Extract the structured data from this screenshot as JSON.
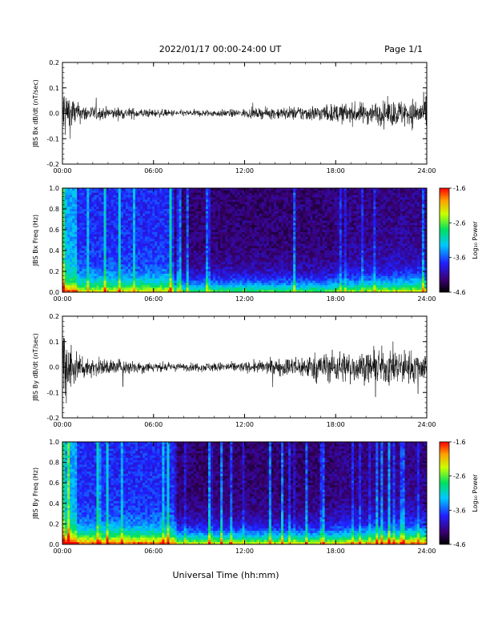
{
  "header": {
    "title": "2022/01/17  00:00-24:00 UT",
    "page": "Page 1/1"
  },
  "footer": {
    "xlabel": "Universal Time (hh:mm)"
  },
  "chart_data": [
    {
      "type": "line",
      "ylabel": "JBS Bx dB/dt (nT/sec)",
      "xlim": [
        0,
        24
      ],
      "ylim": [
        -0.2,
        0.2
      ],
      "yticks": [
        "0.2",
        "0.1",
        "0.0",
        "-0.1",
        "-0.2"
      ],
      "xticks": [
        "00:00",
        "06:00",
        "12:00",
        "18:00",
        "24:00"
      ],
      "series": [
        {
          "amplitude_envelope": {
            "x_hours": [
              0,
              0.5,
              1,
              2,
              3,
              4,
              5,
              6,
              7,
              8,
              9,
              10,
              11,
              12,
              13,
              14,
              15,
              16,
              17,
              18,
              19,
              20,
              21,
              22,
              23,
              24
            ],
            "amplitude": [
              0.11,
              0.07,
              0.035,
              0.025,
              0.02,
              0.02,
              0.017,
              0.014,
              0.012,
              0.011,
              0.012,
              0.012,
              0.013,
              0.015,
              0.017,
              0.02,
              0.023,
              0.026,
              0.028,
              0.032,
              0.035,
              0.037,
              0.04,
              0.045,
              0.05,
              0.05
            ]
          }
        }
      ]
    },
    {
      "type": "heatmap",
      "ylabel": "JBS Bx Freq (Hz)",
      "xlim": [
        0,
        24
      ],
      "ylim": [
        0.0,
        1.0
      ],
      "yticks": [
        "1.0",
        "0.8",
        "0.6",
        "0.4",
        "0.2",
        "0.0"
      ],
      "xticks": [
        "00:00",
        "06:00",
        "12:00",
        "18:00",
        "24:00"
      ],
      "colorbar": {
        "label": "Log₁₀ Power",
        "min": -4.6,
        "max": -1.6,
        "ticks": [
          "-1.6",
          "-2.6",
          "-3.6",
          "-4.6"
        ]
      }
    },
    {
      "type": "line",
      "ylabel": "JBS By dB/dt (nT/sec)",
      "xlim": [
        0,
        24
      ],
      "ylim": [
        -0.2,
        0.2
      ],
      "yticks": [
        "0.2",
        "0.1",
        "0.0",
        "-0.1",
        "-0.2"
      ],
      "xticks": [
        "00:00",
        "06:00",
        "12:00",
        "18:00",
        "24:00"
      ],
      "series": [
        {
          "amplitude_envelope": {
            "x_hours": [
              0,
              0.5,
              1,
              2,
              3,
              4,
              5,
              6,
              7,
              8,
              9,
              10,
              11,
              12,
              13,
              14,
              15,
              16,
              17,
              18,
              19,
              20,
              21,
              22,
              23,
              24
            ],
            "amplitude": [
              0.14,
              0.1,
              0.05,
              0.03,
              0.028,
              0.027,
              0.022,
              0.017,
              0.014,
              0.013,
              0.015,
              0.016,
              0.017,
              0.017,
              0.022,
              0.027,
              0.034,
              0.04,
              0.05,
              0.055,
              0.055,
              0.05,
              0.06,
              0.065,
              0.055,
              0.05
            ]
          }
        }
      ]
    },
    {
      "type": "heatmap",
      "ylabel": "JBS By Freq (Hz)",
      "xlim": [
        0,
        24
      ],
      "ylim": [
        0.0,
        1.0
      ],
      "yticks": [
        "1.0",
        "0.8",
        "0.6",
        "0.4",
        "0.2",
        "0.0"
      ],
      "xticks": [
        "00:00",
        "06:00",
        "12:00",
        "18:00",
        "24:00"
      ],
      "colorbar": {
        "label": "Log₁₀ Power",
        "min": -4.6,
        "max": -1.6,
        "ticks": [
          "-1.6",
          "-2.6",
          "-3.6",
          "-4.6"
        ]
      }
    }
  ]
}
